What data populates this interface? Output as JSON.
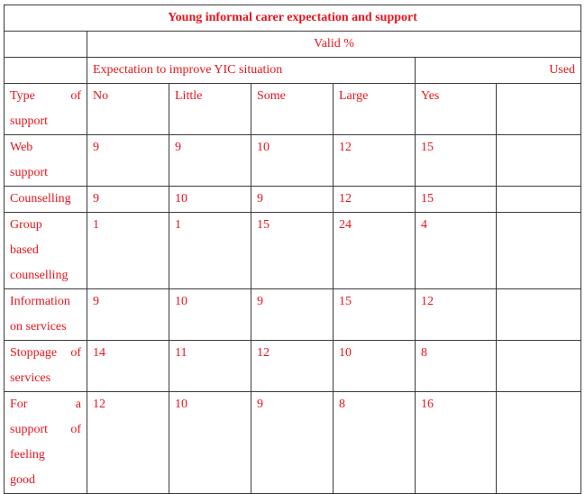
{
  "title": "Young informal carer expectation and support",
  "valid_label": "Valid %",
  "expectation_label": "Expectation to improve YIC situation",
  "used_label": "Used",
  "columns": {
    "type": "Type of support",
    "no": "No",
    "little": "Little",
    "some": "Some",
    "large": "Large",
    "yes": "Yes"
  },
  "rows": [
    {
      "label": "Web support",
      "no": "9",
      "little": "9",
      "some": "10",
      "large": "12",
      "yes": "15"
    },
    {
      "label": "Counselling",
      "no": "9",
      "little": "10",
      "some": "9",
      "large": "12",
      "yes": "15"
    },
    {
      "label": "Group based counselling",
      "no": "1",
      "little": "1",
      "some": "15",
      "large": "24",
      "yes": "4"
    },
    {
      "label": "Information on services",
      "no": "9",
      "little": "10",
      "some": "9",
      "large": "15",
      "yes": "12"
    },
    {
      "label": "Stoppage of services",
      "no": "14",
      "little": "11",
      "some": "12",
      "large": "10",
      "yes": "8"
    },
    {
      "label": "For a support of feeling good",
      "no": "12",
      "little": "10",
      "some": "9",
      "large": "8",
      "yes": "16"
    }
  ]
}
